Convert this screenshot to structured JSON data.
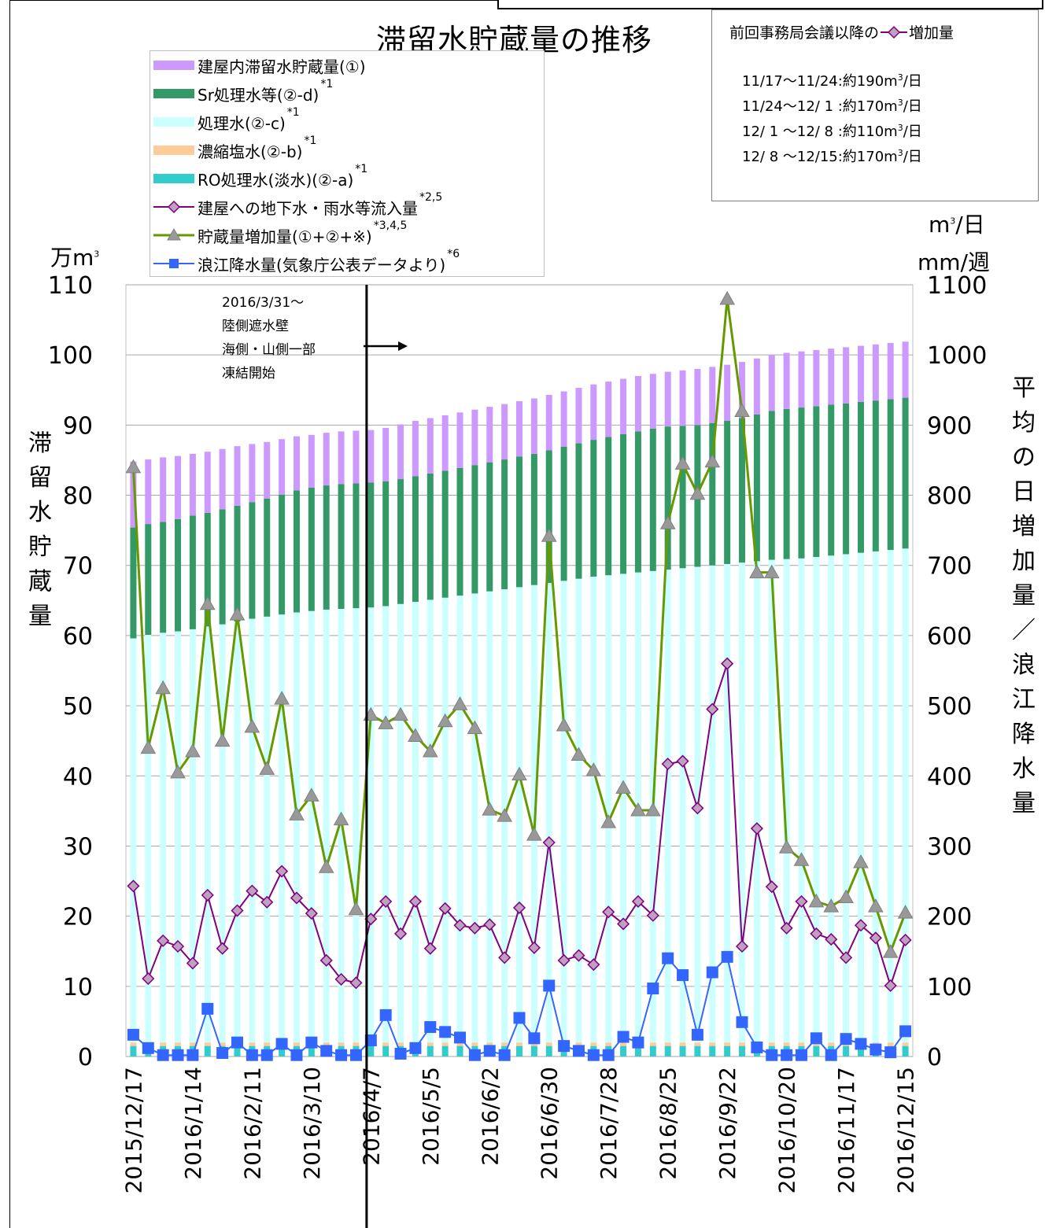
{
  "title": "滞留水貯蔵量の推移",
  "left_axis": {
    "unit": "万m",
    "unit_sup": "3",
    "label": "滞留水貯蔵量"
  },
  "right_axis": {
    "unit_line1": "m",
    "unit_line1_sup": "3",
    "unit_line1_tail": "/日",
    "unit_line2": "mm/週",
    "label": "平均の日増加量/浪江降水量"
  },
  "legend": [
    {
      "label": "建屋内滞留水貯蔵量(①)",
      "sup": "",
      "kind": "bar",
      "color": "#cc99ff"
    },
    {
      "label": "Sr処理水等(②-d)",
      "sup": "*1",
      "kind": "bar",
      "color": "#339966"
    },
    {
      "label": "処理水(②-c)",
      "sup": "*1",
      "kind": "bar",
      "color": "#ccffff"
    },
    {
      "label": "濃縮塩水(②-b)",
      "sup": "*1",
      "kind": "bar",
      "color": "#ffcc99"
    },
    {
      "label": "RO処理水(淡水)(②-a)",
      "sup": "*1",
      "kind": "bar",
      "color": "#33cccc"
    },
    {
      "label": "建屋への地下水・雨水等流入量",
      "sup": "*2,5",
      "kind": "diamond-line",
      "color": "#800080"
    },
    {
      "label": "貯蔵量増加量(①+②+※)",
      "sup": "*3,4,5",
      "kind": "triangle-line",
      "color": "#669900"
    },
    {
      "label": "浪江降水量(気象庁公表データより)",
      "sup": "*6",
      "kind": "square-line",
      "color": "#3366ff"
    }
  ],
  "info_box": {
    "heading_prefix": "前回事務局会議以降の",
    "heading_suffix": "増加量",
    "lines": [
      {
        "text": "11/17～11/24:約190m",
        "sup": "3",
        "tail": "/日"
      },
      {
        "text": "11/24～12/ 1 :約170m",
        "sup": "3",
        "tail": "/日"
      },
      {
        "text": "12/ 1 ～12/ 8 :約110m",
        "sup": "3",
        "tail": "/日"
      },
      {
        "text": "12/ 8 ～12/15:約170m",
        "sup": "3",
        "tail": "/日"
      }
    ]
  },
  "annotation": {
    "lines": [
      "2016/3/31～",
      "陸側遮水壁",
      "海側・山側一部",
      "凍結開始"
    ],
    "arrow": "→"
  },
  "chart_data": {
    "type": "bar",
    "stacked": true,
    "x_tick_labels": [
      "2015/12/17",
      "2016/1/14",
      "2016/2/11",
      "2016/3/10",
      "2016/4/7",
      "2016/5/5",
      "2016/6/2",
      "2016/6/30",
      "2016/7/28",
      "2016/8/25",
      "2016/9/22",
      "2016/10/20",
      "2016/11/17",
      "2016/12/15"
    ],
    "left_ylim": [
      0,
      110
    ],
    "left_yticks": [
      0,
      10,
      20,
      30,
      40,
      50,
      60,
      70,
      80,
      90,
      100,
      110
    ],
    "right_ylim": [
      0,
      1100
    ],
    "right_yticks": [
      0,
      100,
      200,
      300,
      400,
      500,
      600,
      700,
      800,
      900,
      1000,
      1100
    ],
    "grid": true,
    "n_weeks": 53,
    "marker_week_index": 16,
    "stack_series": [
      {
        "name": "RO処理水(淡水)(②-a)",
        "color": "#33cccc",
        "axis": "left",
        "values": [
          1.5,
          1.5,
          1.5,
          1.5,
          1.5,
          1.5,
          1.5,
          1.5,
          1.5,
          1.5,
          1.5,
          1.5,
          1.5,
          1.5,
          1.5,
          1.5,
          1.5,
          1.5,
          1.5,
          1.5,
          1.5,
          1.5,
          1.5,
          1.5,
          1.5,
          1.5,
          1.5,
          1.5,
          1.5,
          1.5,
          1.5,
          1.5,
          1.5,
          1.5,
          1.5,
          1.5,
          1.5,
          1.5,
          1.5,
          1.5,
          1.5,
          1.5,
          1.5,
          1.5,
          1.5,
          1.5,
          1.5,
          1.5,
          1.5,
          1.5,
          1.5,
          1.5,
          1.5
        ]
      },
      {
        "name": "濃縮塩水(②-b)",
        "color": "#ffcc99",
        "axis": "left",
        "values": [
          0.5,
          0.5,
          0.5,
          0.5,
          0.5,
          0.5,
          0.5,
          0.5,
          0.5,
          0.5,
          0.5,
          0.5,
          0.5,
          0.5,
          0.5,
          0.5,
          0.5,
          0.5,
          0.5,
          0.5,
          0.5,
          0.5,
          0.5,
          0.5,
          0.5,
          0.5,
          0.5,
          0.5,
          0.5,
          0.5,
          0.5,
          0.5,
          0.5,
          0.5,
          0.5,
          0.5,
          0.5,
          0.5,
          0.5,
          0.5,
          0.5,
          0.5,
          0.5,
          0.5,
          0.5,
          0.5,
          0.5,
          0.5,
          0.5,
          0.5,
          0.5,
          0.5,
          0.5
        ]
      },
      {
        "name": "処理水(②-c)",
        "color": "#ccffff",
        "axis": "left",
        "values": [
          57.6,
          58.1,
          58.4,
          58.6,
          58.9,
          59.3,
          59.6,
          60.0,
          60.4,
          60.7,
          61.0,
          61.3,
          61.5,
          61.7,
          61.8,
          61.9,
          62.0,
          62.2,
          62.5,
          62.8,
          63.1,
          63.4,
          63.7,
          64.0,
          64.3,
          64.6,
          64.9,
          65.2,
          65.5,
          65.8,
          66.1,
          66.4,
          66.6,
          66.8,
          67.0,
          67.2,
          67.4,
          67.6,
          67.8,
          68.0,
          68.2,
          68.4,
          68.6,
          68.8,
          68.9,
          69.0,
          69.2,
          69.4,
          69.6,
          69.8,
          70.0,
          70.2,
          70.4
        ]
      },
      {
        "name": "Sr処理水等(②-d)",
        "color": "#339966",
        "axis": "left",
        "values": [
          15.8,
          15.8,
          15.8,
          16.0,
          16.2,
          16.2,
          16.4,
          16.5,
          16.6,
          16.8,
          17.1,
          17.4,
          17.6,
          17.7,
          17.8,
          17.8,
          17.8,
          17.8,
          17.8,
          17.9,
          18.0,
          18.1,
          18.2,
          18.3,
          18.4,
          18.5,
          18.6,
          18.7,
          18.9,
          19.1,
          19.3,
          19.5,
          19.7,
          19.9,
          20.1,
          20.3,
          20.4,
          20.3,
          20.2,
          20.3,
          20.4,
          20.6,
          20.9,
          21.2,
          21.4,
          21.5,
          21.5,
          21.5,
          21.5,
          21.5,
          21.5,
          21.5,
          21.5
        ]
      },
      {
        "name": "建屋内滞留水貯蔵量(①)",
        "color": "#cc99ff",
        "axis": "left",
        "values": [
          9.4,
          9.2,
          9.2,
          9.0,
          8.8,
          8.7,
          8.6,
          8.5,
          8.3,
          8.1,
          7.9,
          7.7,
          7.5,
          7.5,
          7.5,
          7.5,
          7.5,
          7.6,
          7.8,
          7.9,
          7.9,
          7.9,
          7.9,
          7.9,
          7.9,
          7.9,
          7.9,
          7.9,
          7.9,
          7.9,
          7.9,
          7.9,
          7.9,
          7.9,
          7.9,
          7.8,
          7.8,
          7.9,
          8.0,
          8.0,
          8.0,
          8.0,
          8.0,
          8.0,
          8.0,
          8.0,
          8.0,
          8.0,
          8.0,
          8.0,
          8.0,
          8.0,
          8.0
        ]
      }
    ],
    "line_series": [
      {
        "name": "貯蔵量増加量(①+②+※)",
        "color": "#669900",
        "marker": "triangle",
        "marker_color": "#999999",
        "axis": "right",
        "values": [
          840,
          440,
          525,
          405,
          435,
          645,
          450,
          630,
          470,
          410,
          510,
          345,
          372,
          270,
          338,
          210,
          487,
          475,
          487,
          457,
          435,
          478,
          502,
          468,
          352,
          343,
          402,
          316,
          742,
          472,
          430,
          408,
          334,
          383,
          351,
          351,
          760,
          845,
          802,
          848,
          1080,
          920,
          690,
          690,
          298,
          280,
          221,
          214,
          227,
          277,
          214,
          149,
          205
        ]
      },
      {
        "name": "建屋への地下水・雨水等流入量",
        "color": "#800080",
        "marker": "diamond",
        "marker_color": "#bfa0c0",
        "axis": "right",
        "values": [
          243,
          111,
          165,
          157,
          133,
          230,
          154,
          208,
          236,
          220,
          264,
          226,
          204,
          137,
          110,
          105,
          196,
          221,
          175,
          221,
          154,
          211,
          187,
          183,
          188,
          141,
          212,
          155,
          305,
          137,
          144,
          131,
          206,
          189,
          221,
          201,
          417,
          421,
          354,
          495,
          560,
          157,
          325,
          242,
          183,
          221,
          175,
          167,
          141,
          187,
          169,
          101,
          166
        ]
      },
      {
        "name": "浪江降水量(気象庁公表データより)",
        "color": "#3366ff",
        "marker": "square",
        "marker_color": "#3366ff",
        "axis": "right",
        "values": [
          31,
          12,
          2,
          2,
          2,
          68,
          5,
          20,
          2,
          2,
          18,
          2,
          20,
          8,
          2,
          2,
          23,
          59,
          4,
          12,
          42,
          35,
          27,
          2,
          8,
          2,
          55,
          26,
          101,
          15,
          8,
          2,
          2,
          28,
          20,
          97,
          140,
          116,
          31,
          120,
          142,
          49,
          13,
          2,
          2,
          2,
          26,
          2,
          25,
          18,
          10,
          6,
          36
        ]
      }
    ]
  }
}
